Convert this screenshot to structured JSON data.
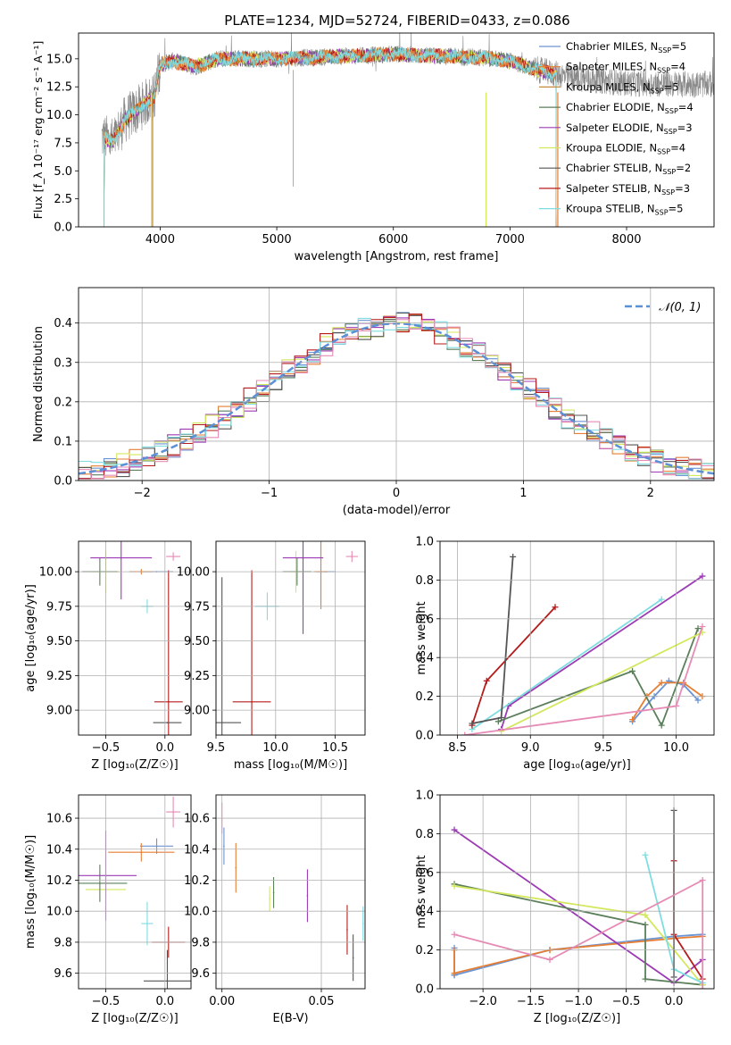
{
  "figure": {
    "title": "PLATE=1234, MJD=52724, FIBERID=0433, z=0.086"
  },
  "colors": {
    "Chabrier MILES": "#6a94d4",
    "Salpeter MILES": "#e67e33",
    "Kroupa MILES": "#c28a3a",
    "Chabrier ELODIE": "#5b7f5b",
    "Salpeter ELODIE": "#9c3bb5",
    "Kroupa ELODIE": "#d4e85e",
    "Chabrier STELIB": "#555555",
    "Salpeter STELIB": "#b51b1b",
    "Kroupa STELIB": "#7fdde0",
    "Pink": "#e68bb5",
    "Gray": "#888888"
  },
  "chart_data": [
    {
      "id": "spectrum",
      "type": "line",
      "xlabel": "wavelength [Angstrom, rest frame]",
      "ylabel": "Flux [f_λ 10⁻¹⁷ erg cm⁻² s⁻¹ A⁻¹]",
      "xlim": [
        3300,
        8750
      ],
      "ylim": [
        0,
        17.3
      ],
      "xticks": [
        4000,
        5000,
        6000,
        7000,
        8000
      ],
      "yticks": [
        0.0,
        2.5,
        5.0,
        7.5,
        10.0,
        12.5,
        15.0
      ],
      "continuum": [
        [
          3500,
          8.0
        ],
        [
          3600,
          7.6
        ],
        [
          3700,
          9.6
        ],
        [
          3800,
          10.4
        ],
        [
          3900,
          11.3
        ],
        [
          3950,
          11.6
        ],
        [
          4000,
          14.5
        ],
        [
          4100,
          14.8
        ],
        [
          4300,
          14.3
        ],
        [
          4500,
          15.0
        ],
        [
          5000,
          15.0
        ],
        [
          5500,
          15.2
        ],
        [
          6000,
          15.4
        ],
        [
          6500,
          15.2
        ],
        [
          6800,
          15.1
        ],
        [
          7000,
          14.8
        ],
        [
          7200,
          14.1
        ],
        [
          7500,
          13.4
        ],
        [
          8000,
          12.8
        ],
        [
          8750,
          12.7
        ]
      ],
      "legend": [
        {
          "label": "Chabrier MILES",
          "sub": "SSP",
          "n": "5"
        },
        {
          "label": "Salpeter MILES",
          "sub": "SSP",
          "n": "4"
        },
        {
          "label": "Kroupa MILES",
          "sub": "SSP",
          "n": "5"
        },
        {
          "label": "Chabrier ELODIE",
          "sub": "SSP",
          "n": "4"
        },
        {
          "label": "Salpeter ELODIE",
          "sub": "SSP",
          "n": "3"
        },
        {
          "label": "Kroupa ELODIE",
          "sub": "SSP",
          "n": "4"
        },
        {
          "label": "Chabrier STELIB",
          "sub": "SSP",
          "n": "2"
        },
        {
          "label": "Salpeter STELIB",
          "sub": "SSP",
          "n": "3"
        },
        {
          "label": "Kroupa STELIB",
          "sub": "SSP",
          "n": "5"
        }
      ],
      "legend_location": "right"
    },
    {
      "id": "residuals",
      "type": "histogram",
      "xlabel": "(data-model)/error",
      "ylabel": "Normed distribution",
      "xlim": [
        -2.5,
        2.5
      ],
      "ylim": [
        0,
        0.49
      ],
      "xticks": [
        -2,
        -1,
        0,
        1,
        2
      ],
      "yticks": [
        0.0,
        0.1,
        0.2,
        0.3,
        0.4
      ],
      "bin_width": 0.1,
      "series_colors": [
        "Chabrier MILES",
        "Salpeter MILES",
        "Chabrier ELODIE",
        "Salpeter ELODIE",
        "Kroupa ELODIE",
        "Chabrier STELIB",
        "Salpeter STELIB",
        "Kroupa STELIB",
        "Pink"
      ],
      "gaussian_label": "𝒩(0, 1)",
      "gaussian_color": "#5b8fd6",
      "legend_location": "top-right"
    },
    {
      "id": "z_age",
      "type": "errorbar",
      "xlabel": "Z [log₁₀(Z/Z☉)]",
      "ylabel": "age  [log₁₀(age/yr)]",
      "xlim": [
        -0.73,
        0.22
      ],
      "ylim": [
        8.82,
        10.22
      ],
      "xticks": [
        -0.5,
        0.0
      ],
      "yticks": [
        9.0,
        9.25,
        9.5,
        9.75,
        10.0
      ],
      "points": [
        {
          "s": "Chabrier MILES",
          "x": -0.07,
          "y": 10.0,
          "xe": 0.14,
          "ye": 0.0
        },
        {
          "s": "Salpeter MILES",
          "x": -0.2,
          "y": 10.0,
          "xe": 0.1,
          "ye": 0.02
        },
        {
          "s": "Kroupa ELODIE",
          "x": -0.5,
          "y": 10.0,
          "xe": 0.12,
          "ye": 0.15
        },
        {
          "s": "Chabrier ELODIE",
          "x": -0.55,
          "y": 10.0,
          "xe": 0.15,
          "ye": 0.1
        },
        {
          "s": "Salpeter ELODIE",
          "x": -0.37,
          "y": 10.1,
          "xe": 0.26,
          "ye": 0.3
        },
        {
          "s": "Kroupa STELIB",
          "x": -0.15,
          "y": 9.75,
          "xe": 0.05,
          "ye": 0.05
        },
        {
          "s": "Salpeter STELIB",
          "x": 0.03,
          "y": 9.06,
          "xe": 0.12,
          "ye": 0.95
        },
        {
          "s": "Chabrier STELIB",
          "x": 0.02,
          "y": 8.91,
          "xe": 0.12,
          "ye": 0.0
        },
        {
          "s": "Pink",
          "x": 0.07,
          "y": 10.11,
          "xe": 0.06,
          "ye": 0.03
        }
      ]
    },
    {
      "id": "mass_age",
      "type": "errorbar",
      "xlabel": "mass [log₁₀(M/M☉)]",
      "ylabel": "",
      "xlim": [
        9.5,
        10.75
      ],
      "ylim": [
        8.82,
        10.22
      ],
      "xticks": [
        9.5,
        10.0,
        10.5
      ],
      "yticks": [
        9.0,
        9.25,
        9.5,
        9.75,
        10.0
      ],
      "points": [
        {
          "s": "Chabrier MILES",
          "x": 10.42,
          "y": 10.0,
          "xe": 0.08,
          "ye": 0.0
        },
        {
          "s": "Salpeter MILES",
          "x": 10.38,
          "y": 10.0,
          "xe": 0.06,
          "ye": 0.27
        },
        {
          "s": "Kroupa ELODIE",
          "x": 10.17,
          "y": 10.0,
          "xe": 0.05,
          "ye": 0.15
        },
        {
          "s": "Chabrier ELODIE",
          "x": 10.18,
          "y": 10.0,
          "xe": 0.12,
          "ye": 0.1
        },
        {
          "s": "Salpeter ELODIE",
          "x": 10.23,
          "y": 10.1,
          "xe": 0.17,
          "ye": 0.55
        },
        {
          "s": "Kroupa STELIB",
          "x": 9.93,
          "y": 9.75,
          "xe": 0.1,
          "ye": 0.1
        },
        {
          "s": "Salpeter STELIB",
          "x": 9.8,
          "y": 9.06,
          "xe": 0.16,
          "ye": 0.95
        },
        {
          "s": "Chabrier STELIB",
          "x": 9.55,
          "y": 8.91,
          "xe": 0.16,
          "ye": 1.05
        },
        {
          "s": "Pink",
          "x": 10.64,
          "y": 10.11,
          "xe": 0.05,
          "ye": 0.04
        }
      ]
    },
    {
      "id": "age_weight",
      "type": "line",
      "xlabel": "age  [log₁₀(age/yr)]",
      "ylabel": "mass weight",
      "xlim": [
        8.38,
        10.26
      ],
      "ylim": [
        0,
        1.0
      ],
      "xticks": [
        8.5,
        9.0,
        9.5,
        10.0
      ],
      "yticks": [
        0.0,
        0.2,
        0.4,
        0.6,
        0.8,
        1.0
      ],
      "series": [
        {
          "s": "Chabrier MILES",
          "pts": [
            [
              9.7,
              0.07
            ],
            [
              9.85,
              0.2
            ],
            [
              9.95,
              0.28
            ],
            [
              10.05,
              0.26
            ],
            [
              10.15,
              0.18
            ]
          ]
        },
        {
          "s": "Salpeter MILES",
          "pts": [
            [
              9.7,
              0.08
            ],
            [
              9.8,
              0.2
            ],
            [
              9.9,
              0.27
            ],
            [
              10.05,
              0.27
            ],
            [
              10.18,
              0.2
            ]
          ]
        },
        {
          "s": "Salpeter ELODIE",
          "pts": [
            [
              8.8,
              0.03
            ],
            [
              8.85,
              0.15
            ],
            [
              10.18,
              0.82
            ]
          ]
        },
        {
          "s": "Chabrier ELODIE",
          "pts": [
            [
              8.78,
              0.07
            ],
            [
              9.7,
              0.33
            ],
            [
              9.9,
              0.05
            ],
            [
              10.15,
              0.55
            ]
          ]
        },
        {
          "s": "Kroupa ELODIE",
          "pts": [
            [
              8.8,
              0.02
            ],
            [
              10.18,
              0.53
            ]
          ]
        },
        {
          "s": "Kroupa STELIB",
          "pts": [
            [
              8.6,
              0.03
            ],
            [
              9.9,
              0.7
            ]
          ]
        },
        {
          "s": "Salpeter STELIB",
          "pts": [
            [
              8.6,
              0.05
            ],
            [
              8.7,
              0.28
            ],
            [
              9.17,
              0.66
            ]
          ]
        },
        {
          "s": "Chabrier STELIB",
          "pts": [
            [
              8.6,
              0.06
            ],
            [
              8.8,
              0.09
            ],
            [
              8.88,
              0.92
            ]
          ]
        },
        {
          "s": "Pink",
          "pts": [
            [
              8.55,
              0.0
            ],
            [
              10.0,
              0.15
            ],
            [
              10.18,
              0.56
            ]
          ]
        }
      ]
    },
    {
      "id": "z_mass",
      "type": "errorbar",
      "xlabel": "Z [log₁₀(Z/Z☉)]",
      "ylabel": "mass [log₁₀(M/M☉)]",
      "xlim": [
        -0.73,
        0.22
      ],
      "ylim": [
        9.5,
        10.75
      ],
      "xticks": [
        -0.5,
        0.0
      ],
      "yticks": [
        9.6,
        9.8,
        10.0,
        10.2,
        10.4,
        10.6
      ],
      "points": [
        {
          "s": "Chabrier MILES",
          "x": -0.07,
          "y": 10.42,
          "xe": 0.14,
          "ye": 0.05
        },
        {
          "s": "Salpeter MILES",
          "x": -0.2,
          "y": 10.38,
          "xe": 0.28,
          "ye": 0.06
        },
        {
          "s": "Kroupa ELODIE",
          "x": -0.5,
          "y": 10.14,
          "xe": 0.17,
          "ye": 0.05
        },
        {
          "s": "Chabrier ELODIE",
          "x": -0.55,
          "y": 10.18,
          "xe": 0.23,
          "ye": 0.12
        },
        {
          "s": "Salpeter ELODIE",
          "x": -0.5,
          "y": 10.23,
          "xe": 0.26,
          "ye": 0.29
        },
        {
          "s": "Kroupa STELIB",
          "x": -0.15,
          "y": 9.92,
          "xe": 0.05,
          "ye": 0.14
        },
        {
          "s": "Salpeter STELIB",
          "x": 0.03,
          "y": 9.8,
          "xe": 0.14,
          "ye": 0.1
        },
        {
          "s": "Chabrier STELIB",
          "x": 0.02,
          "y": 9.55,
          "xe": 0.2,
          "ye": 0.2
        },
        {
          "s": "Pink",
          "x": 0.07,
          "y": 10.64,
          "xe": 0.06,
          "ye": 0.1
        }
      ]
    },
    {
      "id": "ebv_mass",
      "type": "errorbar",
      "xlabel": "E(B-V)",
      "ylabel": "",
      "xlim": [
        -0.003,
        0.072
      ],
      "ylim": [
        9.5,
        10.75
      ],
      "xticks": [
        0.0,
        0.05
      ],
      "yticks": [
        9.6,
        9.8,
        10.0,
        10.2,
        10.4,
        10.6
      ],
      "points": [
        {
          "s": "Chabrier MILES",
          "x": 0.001,
          "y": 10.42,
          "xe": 0.0,
          "ye": 0.12
        },
        {
          "s": "Salpeter MILES",
          "x": 0.007,
          "y": 10.28,
          "xe": 0.0,
          "ye": 0.16
        },
        {
          "s": "Kroupa ELODIE",
          "x": 0.024,
          "y": 10.08,
          "xe": 0.0,
          "ye": 0.08
        },
        {
          "s": "Chabrier ELODIE",
          "x": 0.026,
          "y": 10.12,
          "xe": 0.0,
          "ye": 0.1
        },
        {
          "s": "Salpeter ELODIE",
          "x": 0.043,
          "y": 10.1,
          "xe": 0.0,
          "ye": 0.17
        },
        {
          "s": "Kroupa STELIB",
          "x": 0.071,
          "y": 9.92,
          "xe": 0.0,
          "ye": 0.11
        },
        {
          "s": "Salpeter STELIB",
          "x": 0.063,
          "y": 9.88,
          "xe": 0.0,
          "ye": 0.16
        },
        {
          "s": "Chabrier STELIB",
          "x": 0.066,
          "y": 9.7,
          "xe": 0.0,
          "ye": 0.15
        },
        {
          "s": "Pink",
          "x": 0.0,
          "y": 10.6,
          "xe": 0.0,
          "ye": 0.1
        }
      ]
    },
    {
      "id": "z_weight",
      "type": "line",
      "xlabel": "Z [log₁₀(Z/Z☉)]",
      "ylabel": "mass weight",
      "xlim": [
        -2.45,
        0.42
      ],
      "ylim": [
        0,
        1.0
      ],
      "xticks": [
        -2.0,
        -1.5,
        -1.0,
        -0.5,
        0.0
      ],
      "yticks": [
        0.0,
        0.2,
        0.4,
        0.6,
        0.8,
        1.0
      ],
      "series": [
        {
          "s": "Chabrier MILES",
          "pts": [
            [
              -2.3,
              0.07
            ],
            [
              -2.3,
              0.21
            ],
            [
              -2.3,
              0.07
            ],
            [
              -1.3,
              0.2
            ],
            [
              0.0,
              0.27
            ],
            [
              0.3,
              0.28
            ]
          ]
        },
        {
          "s": "Salpeter MILES",
          "pts": [
            [
              -2.3,
              0.08
            ],
            [
              -2.3,
              0.2
            ],
            [
              -2.3,
              0.08
            ],
            [
              -1.3,
              0.2
            ],
            [
              0.0,
              0.26
            ],
            [
              0.3,
              0.27
            ]
          ]
        },
        {
          "s": "Salpeter ELODIE",
          "pts": [
            [
              -2.3,
              0.82
            ],
            [
              0.0,
              0.03
            ],
            [
              0.3,
              0.15
            ]
          ]
        },
        {
          "s": "Chabrier ELODIE",
          "pts": [
            [
              -2.3,
              0.54
            ],
            [
              -0.3,
              0.33
            ],
            [
              -0.3,
              0.05
            ],
            [
              0.3,
              0.02
            ]
          ]
        },
        {
          "s": "Kroupa ELODIE",
          "pts": [
            [
              -2.3,
              0.53
            ],
            [
              -0.3,
              0.38
            ],
            [
              0.3,
              0.02
            ]
          ]
        },
        {
          "s": "Kroupa STELIB",
          "pts": [
            [
              -0.3,
              0.69
            ],
            [
              0.0,
              0.1
            ],
            [
              0.3,
              0.03
            ]
          ]
        },
        {
          "s": "Salpeter STELIB",
          "pts": [
            [
              0.0,
              0.66
            ],
            [
              0.0,
              0.28
            ],
            [
              0.3,
              0.05
            ]
          ]
        },
        {
          "s": "Chabrier STELIB",
          "pts": [
            [
              0.0,
              0.92
            ],
            [
              0.0,
              0.06
            ]
          ]
        },
        {
          "s": "Pink",
          "pts": [
            [
              -2.3,
              0.28
            ],
            [
              -1.3,
              0.15
            ],
            [
              0.3,
              0.56
            ],
            [
              0.3,
              0.0
            ]
          ]
        }
      ]
    }
  ]
}
